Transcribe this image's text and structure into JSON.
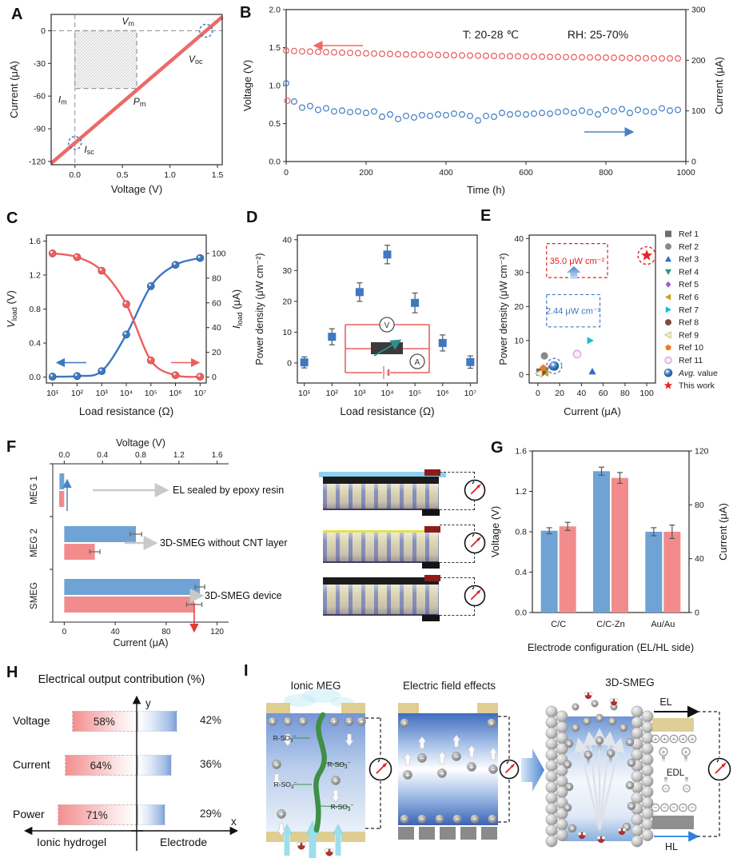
{
  "panel_labels": {
    "A": "A",
    "B": "B",
    "C": "C",
    "D": "D",
    "E": "E",
    "F": "F",
    "G": "G",
    "H": "H",
    "I": "I"
  },
  "colors": {
    "series_blue": "#6ba3d8",
    "series_red": "#ee7070",
    "line_red": "#ec6a6a",
    "line_blue": "#3c78c0",
    "accent_red": "#e8241f",
    "accent_blue": "#3b7dc2",
    "electrode_tan": "#dfcd92",
    "hydrogel_blue": "#6d95d6"
  },
  "chart_data": {
    "A": {
      "type": "line",
      "xlabel": "Voltage (V)",
      "ylabel": "Current (μA)",
      "xlim": [
        -0.25,
        1.55
      ],
      "ylim": [
        -123,
        15
      ],
      "xtick_vals": [
        0,
        0.5,
        1,
        1.5
      ],
      "xtick_labels": [
        "0.0",
        "0.5",
        "1.0",
        "1.5"
      ],
      "ytick_vals": [
        0,
        -30,
        -60,
        -90,
        -120
      ],
      "ytick_labels": [
        "0",
        "-30",
        "-60",
        "-90",
        "-120"
      ],
      "iv_line": {
        "x1": -0.25,
        "y1": -121.7,
        "x2": 1.55,
        "y2": 12.7
      },
      "pm_rect": {
        "x0": 0,
        "y0": -53,
        "x1": 0.65,
        "y1": 0
      },
      "marked_points": [
        {
          "x": 1.38,
          "y": 0
        },
        {
          "x": 0,
          "y": -103
        }
      ],
      "annotations": [
        {
          "main": "V",
          "sub": "m",
          "x": 0.56,
          "y": 6
        },
        {
          "main": "V",
          "sub": "oc",
          "x": 1.27,
          "y": -29
        },
        {
          "main": "I",
          "sub": "m",
          "x": -0.13,
          "y": -66
        },
        {
          "main": "P",
          "sub": "m",
          "x": 0.68,
          "y": -68
        },
        {
          "main": "I",
          "sub": "sc",
          "x": 0.15,
          "y": -112
        }
      ]
    },
    "B": {
      "type": "scatter",
      "xlabel": "Time (h)",
      "ylabel_left": "Voltage (V)",
      "ylabel_right": "Current (μA)",
      "xlim": [
        0,
        1000
      ],
      "ylim_left": [
        0,
        2
      ],
      "ylim_right": [
        0,
        300
      ],
      "xtick_vals": [
        0,
        200,
        400,
        600,
        800,
        1000
      ],
      "ytick_left_vals": [
        0,
        0.5,
        1,
        1.5,
        2
      ],
      "ytick_left_labels": [
        "0.0",
        "0.5",
        "1.0",
        "1.5",
        "2.0"
      ],
      "ytick_right_vals": [
        0,
        100,
        200,
        300
      ],
      "cond_t": "T:  20-28 ℃",
      "cond_rh": "RH:  25-70%",
      "dt": 20,
      "voltage_series": [
        1.46,
        1.455,
        1.45,
        1.447,
        1.443,
        1.44,
        1.437,
        1.433,
        1.43,
        1.427,
        1.424,
        1.421,
        1.418,
        1.416,
        1.413,
        1.411,
        1.409,
        1.407,
        1.405,
        1.403,
        1.401,
        1.399,
        1.397,
        1.395,
        1.393,
        1.391,
        1.39,
        1.388,
        1.386,
        1.385,
        1.383,
        1.381,
        1.38,
        1.378,
        1.377,
        1.375,
        1.374,
        1.372,
        1.371,
        1.37,
        1.368,
        1.366,
        1.365,
        1.363,
        1.362,
        1.36,
        1.359,
        1.358,
        1.358,
        1.357
      ],
      "red_first_point": {
        "t": 3,
        "v": 0.8
      },
      "current_series_as_voltage": [
        1.03,
        0.79,
        0.71,
        0.73,
        0.68,
        0.7,
        0.66,
        0.67,
        0.65,
        0.66,
        0.64,
        0.66,
        0.59,
        0.62,
        0.56,
        0.6,
        0.58,
        0.61,
        0.6,
        0.62,
        0.61,
        0.63,
        0.62,
        0.6,
        0.54,
        0.6,
        0.59,
        0.64,
        0.62,
        0.63,
        0.62,
        0.63,
        0.64,
        0.63,
        0.65,
        0.66,
        0.64,
        0.67,
        0.65,
        0.62,
        0.68,
        0.66,
        0.69,
        0.64,
        0.68,
        0.66,
        0.65,
        0.7,
        0.67,
        0.68
      ]
    },
    "C": {
      "type": "line-dual",
      "xlabel": "Load resistance (Ω)",
      "ylabel_left": {
        "main": "V",
        "sub": "load",
        "unit": " (V)"
      },
      "ylabel_right": {
        "main": "I",
        "sub": "load",
        "unit": " (μA)"
      },
      "x_exponents": [
        1,
        2,
        3,
        4,
        5,
        6,
        7
      ],
      "xtick_labels": [
        "10¹",
        "10²",
        "10³",
        "10⁴",
        "10⁵",
        "10⁶",
        "10⁷"
      ],
      "ytick_left_vals": [
        0,
        0.4,
        0.8,
        1.2,
        1.6
      ],
      "ytick_left_labels": [
        "0.0",
        "0.4",
        "0.8",
        "1.2",
        "1.6"
      ],
      "ytick_right_vals": [
        0,
        20,
        40,
        60,
        80,
        100
      ],
      "voltage": [
        0.005,
        0.012,
        0.07,
        0.5,
        1.07,
        1.32,
        1.4
      ],
      "current": [
        100,
        97,
        86,
        59,
        13.5,
        1.5,
        0.3
      ]
    },
    "D": {
      "type": "scatter-error",
      "xlabel": "Load resistance (Ω)",
      "ylabel": "Power density (μW cm⁻²)",
      "x_exponents": [
        1,
        2,
        3,
        4,
        5,
        6,
        7
      ],
      "xtick_labels": [
        "10¹",
        "10²",
        "10³",
        "10⁴",
        "10⁵",
        "10⁶",
        "10⁷"
      ],
      "ytick_vals": [
        0,
        10,
        20,
        30,
        40
      ],
      "values": [
        0.2,
        8.5,
        23,
        35.2,
        19.5,
        6.5,
        0.3
      ],
      "errors": [
        1.8,
        2.6,
        3,
        3,
        3.2,
        2.6,
        2
      ],
      "inset": {
        "voltmeter": "V",
        "ammeter": "A"
      }
    },
    "E": {
      "type": "scatter",
      "xlabel": "Current  (μA)",
      "ylabel": "Power density (μW cm⁻²)",
      "xlim": [
        -8,
        108
      ],
      "ylim": [
        -2.5,
        41
      ],
      "xtick_vals": [
        0,
        20,
        40,
        60,
        80,
        100
      ],
      "ytick_vals": [
        0,
        10,
        20,
        30,
        40
      ],
      "points": [
        {
          "label": "Ref 1",
          "marker": "square",
          "color": "#6e6e6e",
          "x": 2,
          "y": 0.7
        },
        {
          "label": "Ref 2",
          "marker": "circle",
          "color": "#8a8a8a",
          "x": 6,
          "y": 5.5
        },
        {
          "label": "Ref 3",
          "marker": "triangle-up",
          "color": "#2d6bd0",
          "x": 50,
          "y": 0.9
        },
        {
          "label": "Ref 4",
          "marker": "triangle-down",
          "color": "#2a9d72",
          "x": 7,
          "y": 1.2
        },
        {
          "label": "Ref 5",
          "marker": "diamond",
          "color": "#a259d9",
          "x": 12,
          "y": 2.3
        },
        {
          "label": "Ref 6",
          "marker": "triangle-left",
          "color": "#c9a227",
          "x": 7,
          "y": 0.4
        },
        {
          "label": "Ref 7",
          "marker": "triangle-right",
          "color": "#17c0cf",
          "x": 48,
          "y": 10
        },
        {
          "label": "Ref 8",
          "marker": "circle",
          "color": "#7b4a42",
          "x": 4,
          "y": 0.9
        },
        {
          "label": "Ref 9",
          "marker": "triangle-left-open",
          "color": "#cfc98e",
          "x": 1,
          "y": 0.3
        },
        {
          "label": "Ref 10",
          "marker": "pentagon",
          "color": "#f27a1d",
          "x": 5,
          "y": 1.9
        },
        {
          "label": "Ref 11",
          "marker": "circle-open",
          "color": "#d9a6d4",
          "x": 36,
          "y": 6
        },
        {
          "label": "Avg. value",
          "italic_prefix": "Avg.",
          "marker": "sphere",
          "color": "#3b7dc2",
          "x": 15,
          "y": 2.5,
          "circled": "#4a82c8"
        },
        {
          "label": "This work",
          "marker": "star",
          "color": "#e8241f",
          "x": 100,
          "y": 35,
          "circled": "#e8241f"
        }
      ],
      "callouts": [
        {
          "text": "35.0 μW cm⁻²",
          "color": "#e02020",
          "x0": 8,
          "x1": 64,
          "y0": 28.5,
          "y1": 38.5
        },
        {
          "text": "2.44 μW cm⁻²",
          "color": "#3c78c8",
          "x0": 8,
          "x1": 57,
          "y0": 14,
          "y1": 23.5
        }
      ]
    },
    "F": {
      "type": "barh-dual",
      "top_axis_label": "Voltage (V)",
      "bottom_axis_label": "Current (μA)",
      "top_tick_vals": [
        0,
        0.4,
        0.8,
        1.2,
        1.6
      ],
      "top_tick_labels": [
        "0.0",
        "0.4",
        "0.8",
        "1.2",
        "1.6"
      ],
      "bottom_tick_vals": [
        0,
        40,
        80,
        120
      ],
      "categories": [
        "MEG 1",
        "MEG 2",
        "SMEG"
      ],
      "voltage": [
        -0.05,
        0.75,
        1.42
      ],
      "voltage_err": [
        0.02,
        0.06,
        0.05
      ],
      "current": [
        -4,
        24,
        102
      ],
      "current_err": [
        2,
        4,
        6
      ],
      "row_labels": [
        "EL sealed by epoxy resin",
        "3D-SMEG without CNT layer",
        "3D-SMEG device"
      ]
    },
    "G": {
      "type": "bar-dual",
      "xlabel": "Electrode configuration (EL/HL side)",
      "ylabel_left": "Voltage (V)",
      "ylabel_right": "Current (μA)",
      "ytick_left_vals": [
        0,
        0.4,
        0.8,
        1.2,
        1.6
      ],
      "ytick_left_labels": [
        "0.0",
        "0.4",
        "0.8",
        "1.2",
        "1.6"
      ],
      "ytick_right_vals": [
        0,
        40,
        80,
        120
      ],
      "categories": [
        "C/C",
        "C/C-Zn",
        "Au/Au"
      ],
      "voltage": [
        0.81,
        1.4,
        0.8
      ],
      "voltage_err": [
        0.03,
        0.04,
        0.04
      ],
      "current": [
        64,
        100,
        60
      ],
      "current_err": [
        3,
        4,
        5
      ]
    },
    "H": {
      "type": "diagram",
      "title": "Electrical output contribution (%)",
      "rows": [
        {
          "label": "Voltage",
          "left_pct": 58,
          "right_pct": 42
        },
        {
          "label": "Current",
          "left_pct": 64,
          "right_pct": 36
        },
        {
          "label": "Power",
          "left_pct": 71,
          "right_pct": 29
        }
      ],
      "axis_labels": {
        "x": "x",
        "y": "y"
      },
      "footer": [
        "Ionic hydrogel",
        "Electrode"
      ]
    },
    "I": {
      "type": "diagram",
      "titles": [
        "Ionic MEG",
        "Electric field effects",
        "3D-SMEG"
      ],
      "chain_label": {
        "main": "R-SO",
        "sub": "3",
        "sup": "−"
      },
      "labels": {
        "el": "EL",
        "edl": "EDL",
        "hl": "HL"
      }
    }
  }
}
